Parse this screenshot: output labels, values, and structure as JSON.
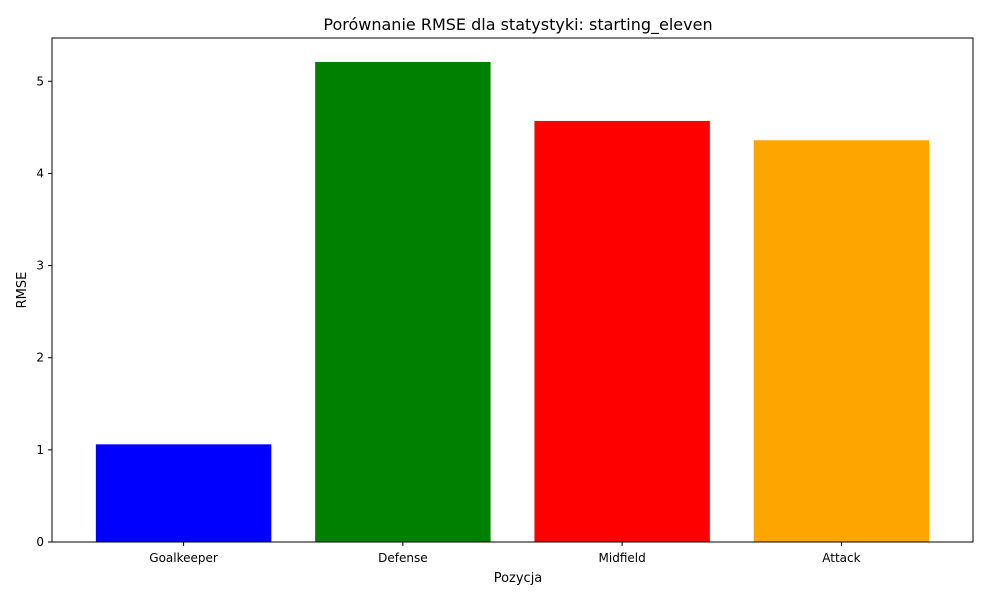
{
  "chart_data": {
    "type": "bar",
    "title": "Porównanie RMSE dla statystyki: starting_eleven",
    "xlabel": "Pozycja",
    "ylabel": "RMSE",
    "categories": [
      "Goalkeeper",
      "Defense",
      "Midfield",
      "Attack"
    ],
    "values": [
      1.06,
      5.21,
      4.57,
      4.36
    ],
    "colors": [
      "#0000ff",
      "#008000",
      "#ff0000",
      "#ffa500"
    ],
    "ylim": [
      0,
      5.47
    ],
    "yticks": [
      "0",
      "1",
      "2",
      "3",
      "4",
      "5"
    ],
    "grid": false,
    "legend": "none"
  }
}
